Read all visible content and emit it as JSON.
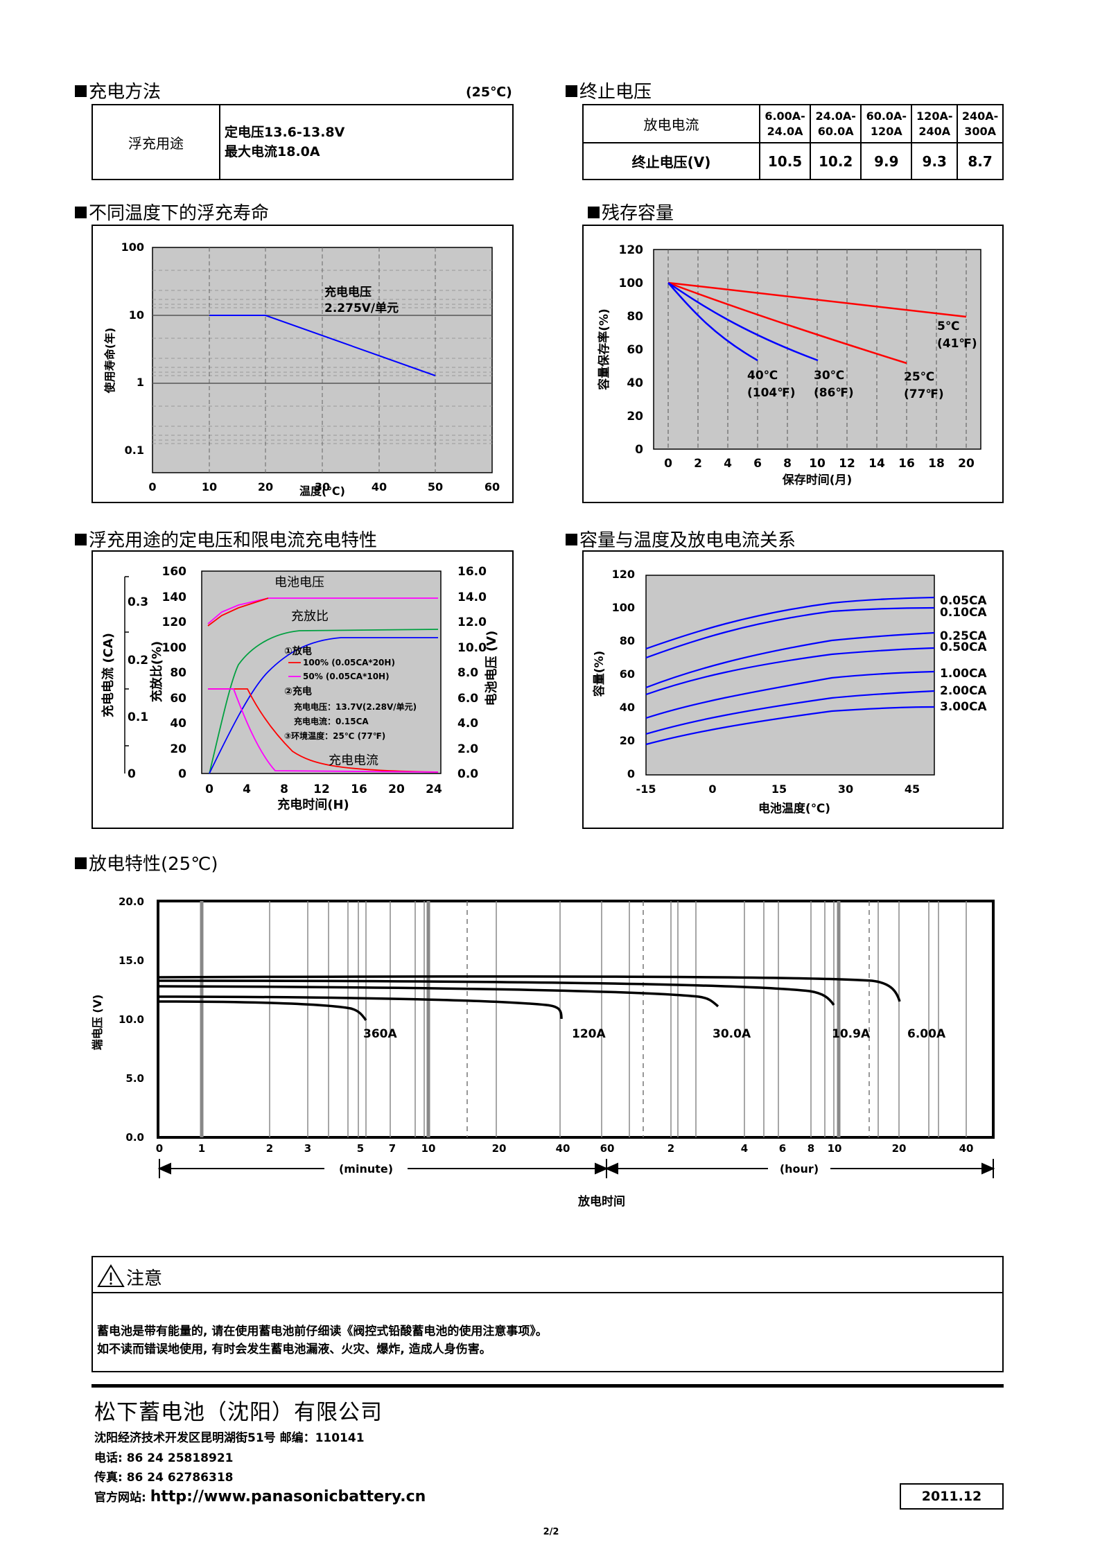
{
  "charging": {
    "title": "充电方法",
    "temp": "(25℃)",
    "row_label": "浮充用途",
    "line1": "定电压13.6-13.8V",
    "line2": "最大电流18.0A"
  },
  "cutoff": {
    "title": "终止电压",
    "row1_label": "放电电流",
    "row2_label": "终止电压(V)",
    "cols": [
      {
        "current": "6.00A-\n24.0A",
        "voltage": "10.5"
      },
      {
        "current": "24.0A-\n60.0A",
        "voltage": "10.2"
      },
      {
        "current": "60.0A-\n120A",
        "voltage": "9.9"
      },
      {
        "current": "120A-\n240A",
        "voltage": "9.3"
      },
      {
        "current": "240A-\n300A",
        "voltage": "8.7"
      }
    ]
  },
  "float_life": {
    "title": "不同温度下的浮充寿命",
    "ylabel": "使用寿命(年)",
    "xlabel": "温度(℃)",
    "y_ticks": [
      "100",
      "10",
      "1",
      "0.1"
    ],
    "x_ticks": [
      "0",
      "10",
      "20",
      "30",
      "40",
      "50",
      "60"
    ],
    "annotation_1": "充电电压",
    "annotation_2": "2.275V/单元"
  },
  "residual": {
    "title": "残存容量",
    "ylabel": "容量保存率(%)",
    "xlabel": "保存时间(月)",
    "y_ticks": [
      "120",
      "100",
      "80",
      "60",
      "40",
      "20",
      "0"
    ],
    "x_ticks": [
      "0",
      "2",
      "4",
      "6",
      "8",
      "10",
      "12",
      "14",
      "16",
      "18",
      "20"
    ],
    "labels": [
      {
        "t1": "5℃",
        "t2": "(41℉)"
      },
      {
        "t1": "25℃",
        "t2": "(77℉)"
      },
      {
        "t1": "30℃",
        "t2": "(86℉)"
      },
      {
        "t1": "40℃",
        "t2": "(104℉)"
      }
    ]
  },
  "float_charge": {
    "title": "浮充用途的定电压和限电流充电特性",
    "ylabel_left_outer": "充电电流 (CA)",
    "ylabel_left_inner": "充放比(%)",
    "ylabel_right": "电池电压 (V)",
    "xlabel": "充电时间(H)",
    "ca_ticks": [
      "0.3",
      "0.2",
      "0.1",
      "0"
    ],
    "pct_ticks": [
      "160",
      "140",
      "120",
      "100",
      "80",
      "60",
      "40",
      "20",
      "0"
    ],
    "v_ticks": [
      "16.0",
      "14.0",
      "12.0",
      "10.0",
      "8.0",
      "6.0",
      "4.0",
      "2.0",
      "0.0"
    ],
    "x_ticks": [
      "0",
      "4",
      "8",
      "12",
      "16",
      "20",
      "24"
    ],
    "curve_voltage": "电池电压",
    "curve_ratio": "充放比",
    "curve_current": "充电电流",
    "note_discharge": "①放电",
    "note_100": "100% (0.05CA*20H)",
    "note_50": "50% (0.05CA*10H)",
    "note_charge": "②充电",
    "note_cv": "充电电压：13.7V(2.28V/单元)",
    "note_cc": "充电电流：0.15CA",
    "note_temp": "③环境温度：25℃ (77℉)"
  },
  "capacity_temp": {
    "title": "容量与温度及放电电流关系",
    "ylabel": "容量(%)",
    "xlabel": "电池温度(℃)",
    "y_ticks": [
      "120",
      "100",
      "80",
      "60",
      "40",
      "20",
      "0"
    ],
    "x_ticks": [
      "-15",
      "0",
      "15",
      "30",
      "45"
    ],
    "series_labels": [
      "0.05CA",
      "0.10CA",
      "0.25CA",
      "0.50CA",
      "1.00CA",
      "2.00CA",
      "3.00CA"
    ]
  },
  "discharge": {
    "title": "放电特性(25℃)",
    "ylabel": "端电压 (V)",
    "xlabel": "放电时间",
    "unit_minute": "(minute)",
    "unit_hour": "(hour)",
    "y_ticks": [
      "20.0",
      "15.0",
      "10.0",
      "5.0",
      "0.0"
    ],
    "x_ticks_min": [
      "0",
      "1",
      "2",
      "3",
      "5",
      "7",
      "10",
      "20",
      "40",
      "60"
    ],
    "x_ticks_hour": [
      "2",
      "4",
      "6",
      "8",
      "10",
      "20",
      "40"
    ],
    "curve_labels": [
      "360A",
      "120A",
      "30.0A",
      "10.9A",
      "6.00A"
    ]
  },
  "caution": {
    "title": "注意",
    "line1": "蓄电池是带有能量的, 请在使用蓄电池前仔细读《阀控式铅酸蓄电池的使用注意事项》。",
    "line2": "如不读而错误地使用, 有时会发生蓄电池漏液、火灾、爆炸, 造成人身伤害。"
  },
  "footer": {
    "company": "松下蓄电池（沈阳）有限公司",
    "address": "沈阳经济技术开发区昆明湖街51号 邮编：110141",
    "tel": "电话: 86 24 25818921",
    "fax": "传真: 86 24 62786318",
    "web_label": "官方网站:",
    "web_url": "http://www.panasonicbattery.cn",
    "date": "2011.12",
    "page": "2/2"
  }
}
